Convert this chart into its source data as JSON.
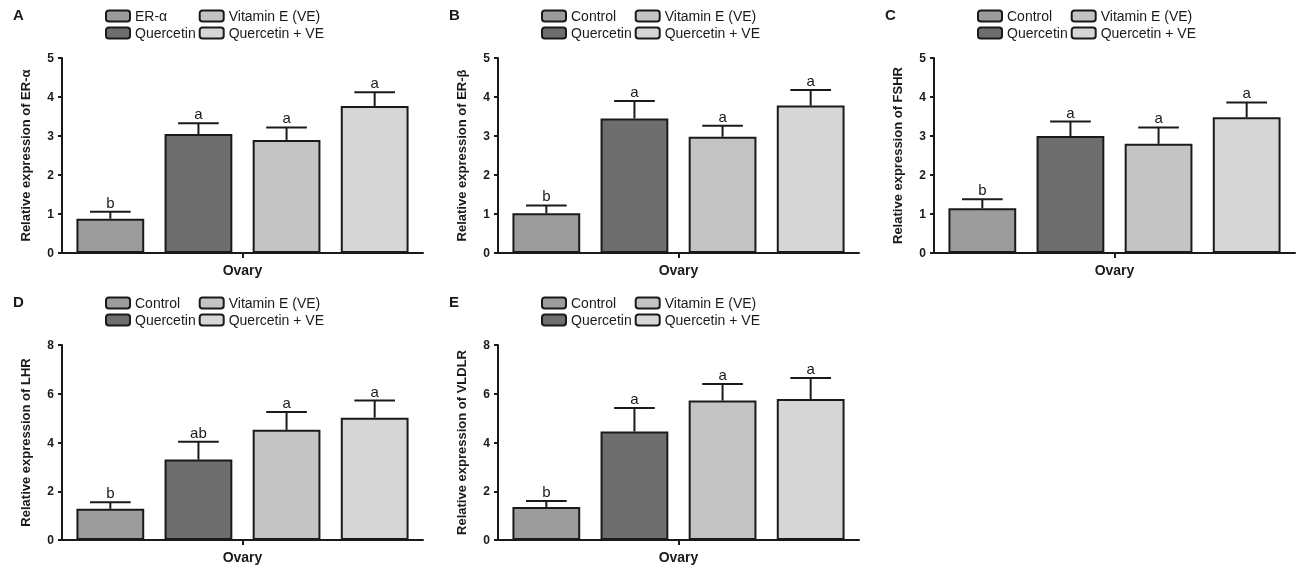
{
  "chart_data": [
    {
      "type": "bar",
      "title": "A",
      "ylabel": "Relative expression of ER-α",
      "categories": [
        "Ovary"
      ],
      "ylim": [
        0,
        5
      ],
      "yticks": [
        0,
        1,
        2,
        3,
        4,
        5
      ],
      "legend": "top",
      "grid": false,
      "series": [
        {
          "name": "ER-α",
          "color": "#9c9c9c",
          "values": [
            0.88
          ],
          "errors": [
            0.18
          ],
          "value_labels": [
            "b"
          ]
        },
        {
          "name": "Quercetin",
          "color": "#6e6e6e",
          "values": [
            3.05
          ],
          "errors": [
            0.28
          ],
          "value_labels": [
            "a"
          ]
        },
        {
          "name": "Vitamin E (VE)",
          "color": "#c4c4c4",
          "values": [
            2.9
          ],
          "errors": [
            0.32
          ],
          "value_labels": [
            "a"
          ]
        },
        {
          "name": "Quercetin + VE",
          "color": "#d6d6d6",
          "values": [
            3.77
          ],
          "errors": [
            0.35
          ],
          "value_labels": [
            "a"
          ]
        }
      ]
    },
    {
      "type": "bar",
      "title": "B",
      "ylabel": "Relative expression of ER-β",
      "categories": [
        "Ovary"
      ],
      "ylim": [
        0,
        5
      ],
      "yticks": [
        0,
        1,
        2,
        3,
        4,
        5
      ],
      "legend": "top",
      "grid": false,
      "series": [
        {
          "name": "Control",
          "color": "#9c9c9c",
          "values": [
            1.02
          ],
          "errors": [
            0.2
          ],
          "value_labels": [
            "b"
          ]
        },
        {
          "name": "Quercetin",
          "color": "#6e6e6e",
          "values": [
            3.45
          ],
          "errors": [
            0.45
          ],
          "value_labels": [
            "a"
          ]
        },
        {
          "name": "Vitamin E (VE)",
          "color": "#c4c4c4",
          "values": [
            2.98
          ],
          "errors": [
            0.28
          ],
          "value_labels": [
            "a"
          ]
        },
        {
          "name": "Quercetin + VE",
          "color": "#d6d6d6",
          "values": [
            3.78
          ],
          "errors": [
            0.4
          ],
          "value_labels": [
            "a"
          ]
        }
      ]
    },
    {
      "type": "bar",
      "title": "C",
      "ylabel": "Relative expression of FSHR",
      "categories": [
        "Ovary"
      ],
      "ylim": [
        0,
        5
      ],
      "yticks": [
        0,
        1,
        2,
        3,
        4,
        5
      ],
      "legend": "top",
      "grid": false,
      "series": [
        {
          "name": "Control",
          "color": "#9c9c9c",
          "values": [
            1.15
          ],
          "errors": [
            0.23
          ],
          "value_labels": [
            "b"
          ]
        },
        {
          "name": "Quercetin",
          "color": "#6e6e6e",
          "values": [
            3.0
          ],
          "errors": [
            0.37
          ],
          "value_labels": [
            "a"
          ]
        },
        {
          "name": "Vitamin E (VE)",
          "color": "#c4c4c4",
          "values": [
            2.8
          ],
          "errors": [
            0.42
          ],
          "value_labels": [
            "a"
          ]
        },
        {
          "name": "Quercetin + VE",
          "color": "#d6d6d6",
          "values": [
            3.48
          ],
          "errors": [
            0.38
          ],
          "value_labels": [
            "a"
          ]
        }
      ]
    },
    {
      "type": "bar",
      "title": "D",
      "ylabel": "Relative expression of LHR",
      "categories": [
        "Ovary"
      ],
      "ylim": [
        0,
        8
      ],
      "yticks": [
        0,
        2,
        4,
        6,
        8
      ],
      "legend": "top",
      "grid": false,
      "series": [
        {
          "name": "Control",
          "color": "#9c9c9c",
          "values": [
            1.28
          ],
          "errors": [
            0.27
          ],
          "value_labels": [
            "b"
          ]
        },
        {
          "name": "Quercetin",
          "color": "#6e6e6e",
          "values": [
            3.3
          ],
          "errors": [
            0.73
          ],
          "value_labels": [
            "ab"
          ]
        },
        {
          "name": "Vitamin E (VE)",
          "color": "#c4c4c4",
          "values": [
            4.52
          ],
          "errors": [
            0.73
          ],
          "value_labels": [
            "a"
          ]
        },
        {
          "name": "Quercetin + VE",
          "color": "#d6d6d6",
          "values": [
            5.02
          ],
          "errors": [
            0.7
          ],
          "value_labels": [
            "a"
          ]
        }
      ]
    },
    {
      "type": "bar",
      "title": "E",
      "ylabel": "Relative expression of VLDLR",
      "categories": [
        "Ovary"
      ],
      "ylim": [
        0,
        8
      ],
      "yticks": [
        0,
        2,
        4,
        6,
        8
      ],
      "legend": "top",
      "grid": false,
      "series": [
        {
          "name": "Control",
          "color": "#9c9c9c",
          "values": [
            1.35
          ],
          "errors": [
            0.25
          ],
          "value_labels": [
            "b"
          ]
        },
        {
          "name": "Quercetin",
          "color": "#6e6e6e",
          "values": [
            4.45
          ],
          "errors": [
            0.97
          ],
          "value_labels": [
            "a"
          ]
        },
        {
          "name": "Vitamin E (VE)",
          "color": "#c4c4c4",
          "values": [
            5.72
          ],
          "errors": [
            0.68
          ],
          "value_labels": [
            "a"
          ]
        },
        {
          "name": "Quercetin + VE",
          "color": "#d6d6d6",
          "values": [
            5.78
          ],
          "errors": [
            0.87
          ],
          "value_labels": [
            "a"
          ]
        }
      ]
    }
  ]
}
